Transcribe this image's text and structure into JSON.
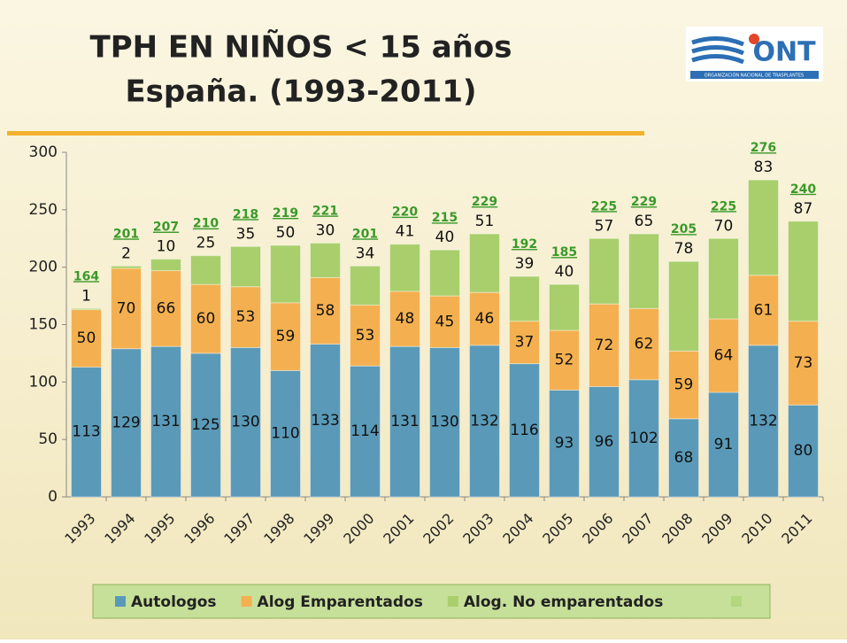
{
  "logo": {
    "text": "ONT",
    "subtitle": "ORGANIZACIÓN NACIONAL DE TRASPLANTES"
  },
  "chart_data": {
    "type": "stacked_bar",
    "title": [
      "TPH EN NIÑOS < 15 años",
      "España.  (1993-2011)"
    ],
    "categories": [
      "1993",
      "1994",
      "1995",
      "1996",
      "1997",
      "1998",
      "1999",
      "2000",
      "2001",
      "2002",
      "2003",
      "2004",
      "2005",
      "2006",
      "2007",
      "2008",
      "2009",
      "2010",
      "2011"
    ],
    "series": [
      {
        "name": "Autologos",
        "color": "#5a9ab8",
        "values": [
          113,
          129,
          131,
          125,
          130,
          110,
          133,
          114,
          131,
          130,
          132,
          116,
          93,
          96,
          102,
          68,
          91,
          132,
          80
        ]
      },
      {
        "name": "Alog Emparentados",
        "color": "#f4b050",
        "values": [
          50,
          70,
          66,
          60,
          53,
          59,
          58,
          53,
          48,
          45,
          46,
          37,
          52,
          72,
          62,
          59,
          64,
          61,
          73
        ]
      },
      {
        "name": "Alog. No emparentados",
        "color": "#a9cf6c",
        "values": [
          1,
          2,
          10,
          25,
          35,
          50,
          30,
          34,
          41,
          40,
          51,
          39,
          40,
          57,
          65,
          78,
          70,
          83,
          87
        ]
      }
    ],
    "totals": [
      164,
      201,
      207,
      210,
      218,
      219,
      221,
      201,
      220,
      215,
      229,
      192,
      185,
      225,
      229,
      205,
      225,
      276,
      240
    ],
    "ylim": [
      0,
      300
    ],
    "yticks": [
      0,
      50,
      100,
      150,
      200,
      250,
      300
    ],
    "grid": false,
    "legend": "bottom"
  }
}
